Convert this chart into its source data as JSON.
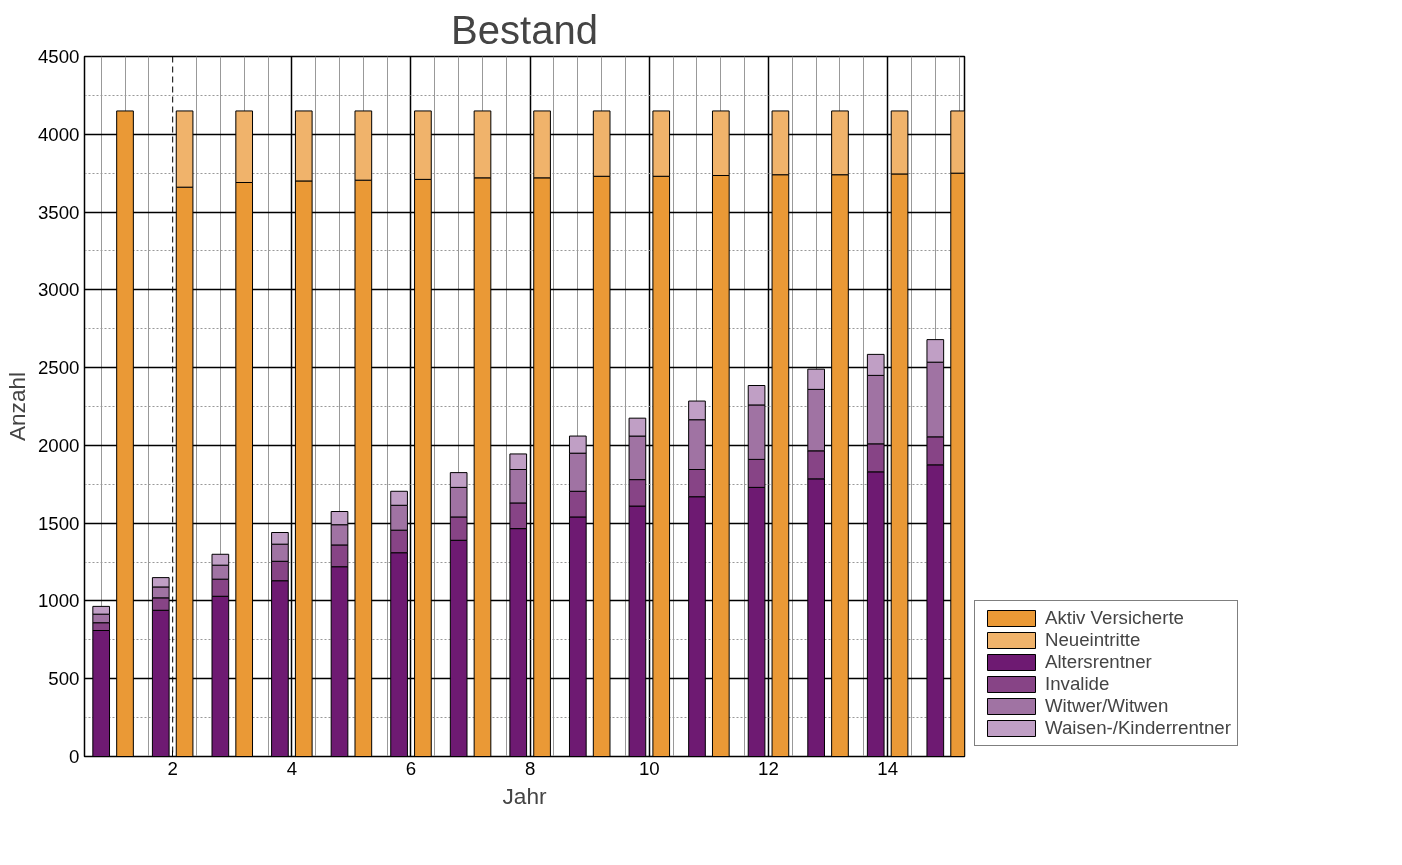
{
  "chart_data": {
    "type": "bar",
    "title": "Bestand",
    "xlabel": "Jahr",
    "ylabel": "Anzahl",
    "stacked": true,
    "xlim": [
      0.52,
      15.29
    ],
    "xticks": [
      2,
      4,
      6,
      8,
      10,
      12,
      14
    ],
    "ylim": [
      0,
      4500
    ],
    "yticks": [
      0,
      500,
      1000,
      1500,
      2000,
      2500,
      3000,
      3500,
      4000,
      4500
    ],
    "grid": true,
    "legend": "bottom right",
    "ref_lines": [
      {
        "axis": "x",
        "value": 2,
        "line_style": "dashed",
        "color": "#000000"
      }
    ],
    "x": [
      0.8,
      1.2,
      1.8,
      2.2,
      2.8,
      3.2,
      3.8,
      4.2,
      4.8,
      5.2,
      5.8,
      6.2,
      6.8,
      7.2,
      7.8,
      8.2,
      8.8,
      9.2,
      9.8,
      10.2,
      10.8,
      11.2,
      11.8,
      12.2,
      12.8,
      13.2,
      13.8,
      14.2,
      14.8,
      15.2
    ],
    "series": [
      {
        "name": "Aktiv Versicherte",
        "color": "#ea9936",
        "values": [
          null,
          4150,
          null,
          3660,
          null,
          3690,
          null,
          3700,
          null,
          3705,
          null,
          3710,
          null,
          3720,
          null,
          3720,
          null,
          3730,
          null,
          3730,
          null,
          3735,
          null,
          3740,
          null,
          3740,
          null,
          3745,
          null,
          3750
        ]
      },
      {
        "name": "Neueintritte",
        "color": "#f0b36b",
        "values": [
          null,
          null,
          null,
          490,
          null,
          460,
          null,
          450,
          null,
          445,
          null,
          440,
          null,
          430,
          null,
          430,
          null,
          420,
          null,
          420,
          null,
          415,
          null,
          410,
          null,
          410,
          null,
          405,
          null,
          400
        ]
      },
      {
        "name": "Altersrentner",
        "color": "#6e1a72",
        "values": [
          810,
          null,
          940,
          null,
          1030,
          null,
          1130,
          null,
          1220,
          null,
          1310,
          null,
          1390,
          null,
          1465,
          null,
          1540,
          null,
          1610,
          null,
          1670,
          null,
          1730,
          null,
          1785,
          null,
          1830,
          null,
          1875,
          null
        ]
      },
      {
        "name": "Invalide",
        "color": "#874486",
        "values": [
          50,
          null,
          80,
          null,
          110,
          null,
          125,
          null,
          140,
          null,
          145,
          null,
          150,
          null,
          165,
          null,
          165,
          null,
          170,
          null,
          175,
          null,
          180,
          null,
          180,
          null,
          180,
          null,
          180,
          null
        ]
      },
      {
        "name": "Witwer/Witwen",
        "color": "#a073a3",
        "values": [
          55,
          null,
          70,
          null,
          90,
          null,
          110,
          null,
          130,
          null,
          160,
          null,
          190,
          null,
          215,
          null,
          245,
          null,
          280,
          null,
          320,
          null,
          350,
          null,
          395,
          null,
          440,
          null,
          480,
          null
        ]
      },
      {
        "name": "Waisen-/Kinderrentner",
        "color": "#c09fc5",
        "values": [
          50,
          null,
          60,
          null,
          70,
          null,
          75,
          null,
          85,
          null,
          90,
          null,
          95,
          null,
          100,
          null,
          110,
          null,
          115,
          null,
          120,
          null,
          125,
          null,
          130,
          null,
          135,
          null,
          145,
          null
        ]
      }
    ]
  }
}
